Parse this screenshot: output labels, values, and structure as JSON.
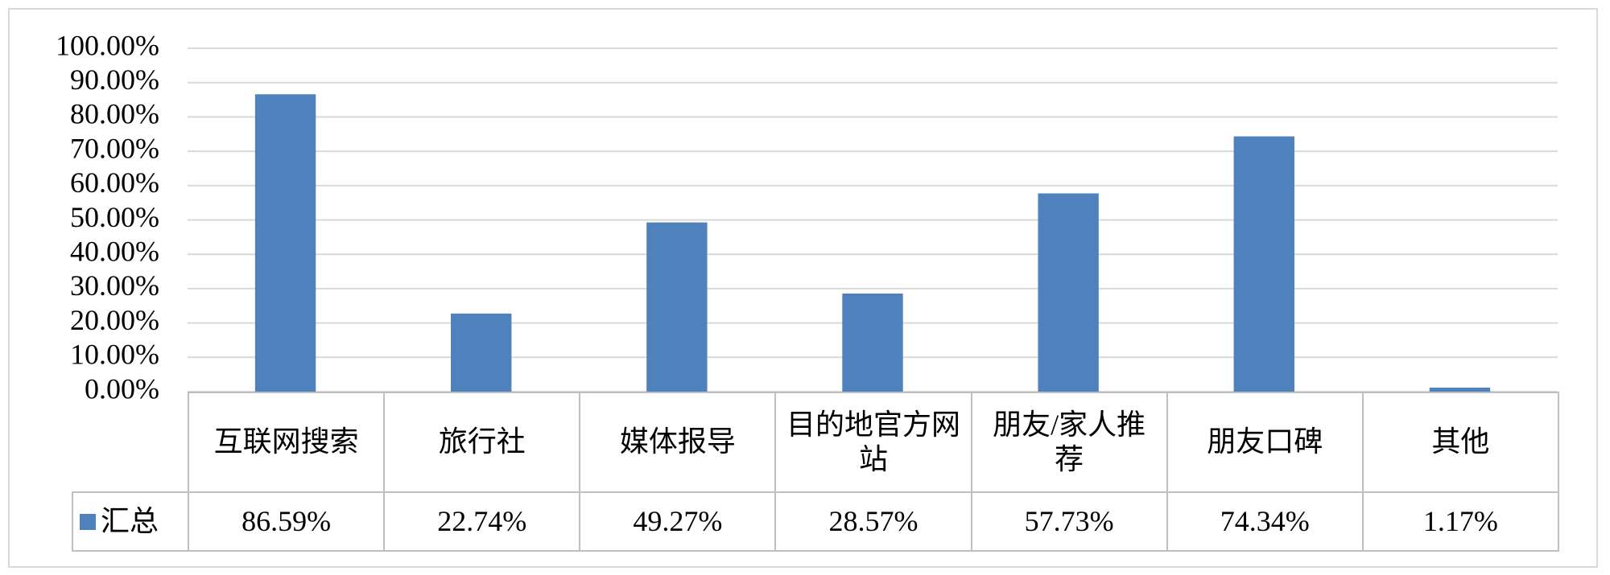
{
  "chart_data": {
    "type": "bar",
    "categories": [
      "互联网搜索",
      "旅行社",
      "媒体报导",
      "目的地官方网站",
      "朋友/家人推荐",
      "朋友口碑",
      "其他"
    ],
    "series": [
      {
        "name": "汇总",
        "color": "#4f81bd",
        "values": [
          86.59,
          22.74,
          49.27,
          28.57,
          57.73,
          74.34,
          1.17
        ],
        "value_labels": [
          "86.59%",
          "22.74%",
          "49.27%",
          "28.57%",
          "57.73%",
          "74.34%",
          "1.17%"
        ]
      }
    ],
    "ylim": [
      0,
      100
    ],
    "yticks": [
      {
        "value": 0,
        "label": "0.00%"
      },
      {
        "value": 10,
        "label": "10.00%"
      },
      {
        "value": 20,
        "label": "20.00%"
      },
      {
        "value": 30,
        "label": "30.00%"
      },
      {
        "value": 40,
        "label": "40.00%"
      },
      {
        "value": 50,
        "label": "50.00%"
      },
      {
        "value": 60,
        "label": "60.00%"
      },
      {
        "value": 70,
        "label": "70.00%"
      },
      {
        "value": 80,
        "label": "80.00%"
      },
      {
        "value": 90,
        "label": "90.00%"
      },
      {
        "value": 100,
        "label": "100.00%"
      }
    ],
    "grid": true
  }
}
